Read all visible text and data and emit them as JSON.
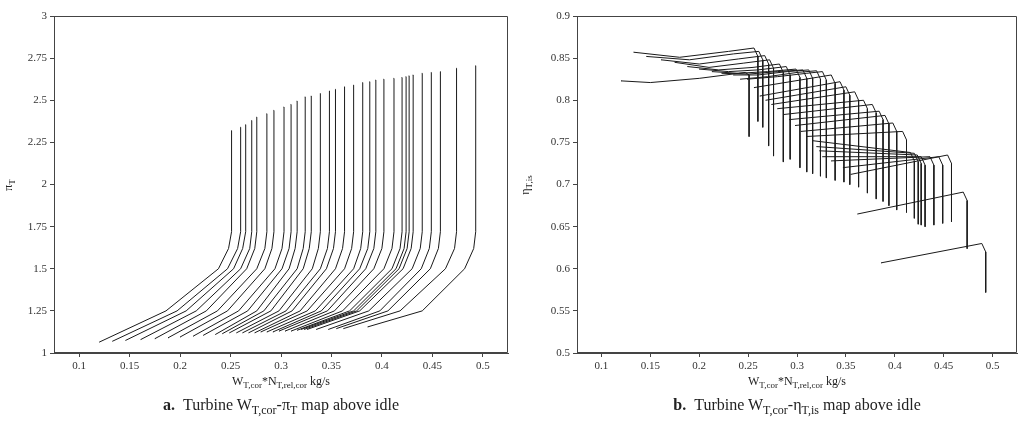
{
  "chart_data": [
    {
      "type": "line",
      "title": "a.  Turbine W$_{T,cor}$-π$_{T}$ map above idle",
      "xlabel": "W$_{T,cor}$*N$_{T,rel,cor}$ kg/s",
      "ylabel": "π$_{T}$",
      "color": "#1a1a1a",
      "marker": "none",
      "grid": false,
      "xlim": [
        0.075,
        0.525
      ],
      "xticks": [
        0.1,
        0.15,
        0.2,
        0.25,
        0.3,
        0.35,
        0.4,
        0.45,
        0.5
      ],
      "ylim": [
        1,
        3
      ],
      "yticks": [
        1,
        1.25,
        1.5,
        1.75,
        2,
        2.25,
        2.5,
        2.75,
        3
      ],
      "series": [
        {
          "x": [
            0.12,
            0.186,
            0.238,
            0.248,
            0.251,
            0.251
          ],
          "values": [
            1.065,
            1.25,
            1.5,
            1.62,
            1.72,
            2.32
          ]
        },
        {
          "x": [
            0.133,
            0.197,
            0.247,
            0.257,
            0.26,
            0.26
          ],
          "values": [
            1.07,
            1.25,
            1.5,
            1.62,
            1.72,
            2.34
          ]
        },
        {
          "x": [
            0.146,
            0.206,
            0.253,
            0.262,
            0.265,
            0.265
          ],
          "values": [
            1.075,
            1.25,
            1.5,
            1.62,
            1.72,
            2.355
          ]
        },
        {
          "x": [
            0.161,
            0.216,
            0.26,
            0.269,
            0.271,
            0.271
          ],
          "values": [
            1.08,
            1.25,
            1.5,
            1.62,
            1.72,
            2.38
          ]
        },
        {
          "x": [
            0.175,
            0.226,
            0.266,
            0.274,
            0.276,
            0.276
          ],
          "values": [
            1.085,
            1.25,
            1.5,
            1.62,
            1.72,
            2.4
          ]
        },
        {
          "x": [
            0.188,
            0.237,
            0.276,
            0.284,
            0.286,
            0.286
          ],
          "values": [
            1.09,
            1.25,
            1.5,
            1.62,
            1.72,
            2.42
          ]
        },
        {
          "x": [
            0.2,
            0.247,
            0.284,
            0.291,
            0.293,
            0.293
          ],
          "values": [
            1.095,
            1.25,
            1.5,
            1.62,
            1.72,
            2.44
          ]
        },
        {
          "x": [
            0.213,
            0.258,
            0.294,
            0.301,
            0.303,
            0.303
          ],
          "values": [
            1.1,
            1.25,
            1.5,
            1.62,
            1.72,
            2.46
          ]
        },
        {
          "x": [
            0.223,
            0.267,
            0.301,
            0.308,
            0.31,
            0.31
          ],
          "values": [
            1.105,
            1.25,
            1.5,
            1.62,
            1.72,
            2.475
          ]
        },
        {
          "x": [
            0.235,
            0.276,
            0.308,
            0.314,
            0.316,
            0.316
          ],
          "values": [
            1.11,
            1.25,
            1.5,
            1.62,
            1.72,
            2.495
          ]
        },
        {
          "x": [
            0.242,
            0.283,
            0.316,
            0.322,
            0.324,
            0.324
          ],
          "values": [
            1.115,
            1.25,
            1.5,
            1.62,
            1.72,
            2.52
          ]
        },
        {
          "x": [
            0.249,
            0.29,
            0.322,
            0.328,
            0.33,
            0.33
          ],
          "values": [
            1.12,
            1.25,
            1.5,
            1.62,
            1.72,
            2.525
          ]
        },
        {
          "x": [
            0.256,
            0.298,
            0.331,
            0.337,
            0.339,
            0.339
          ],
          "values": [
            1.12,
            1.25,
            1.5,
            1.62,
            1.72,
            2.54
          ]
        },
        {
          "x": [
            0.262,
            0.305,
            0.339,
            0.346,
            0.348,
            0.348
          ],
          "values": [
            1.12,
            1.25,
            1.5,
            1.62,
            1.72,
            2.555
          ]
        },
        {
          "x": [
            0.268,
            0.311,
            0.345,
            0.352,
            0.354,
            0.354
          ],
          "values": [
            1.12,
            1.25,
            1.5,
            1.62,
            1.72,
            2.565
          ]
        },
        {
          "x": [
            0.274,
            0.319,
            0.354,
            0.361,
            0.363,
            0.363
          ],
          "values": [
            1.12,
            1.25,
            1.5,
            1.62,
            1.72,
            2.58
          ]
        },
        {
          "x": [
            0.28,
            0.326,
            0.363,
            0.37,
            0.372,
            0.372
          ],
          "values": [
            1.125,
            1.25,
            1.5,
            1.62,
            1.72,
            2.59
          ]
        },
        {
          "x": [
            0.286,
            0.334,
            0.372,
            0.379,
            0.381,
            0.381
          ],
          "values": [
            1.125,
            1.25,
            1.5,
            1.62,
            1.72,
            2.605
          ]
        },
        {
          "x": [
            0.292,
            0.34,
            0.378,
            0.386,
            0.388,
            0.388
          ],
          "values": [
            1.125,
            1.25,
            1.5,
            1.62,
            1.72,
            2.61
          ]
        },
        {
          "x": [
            0.298,
            0.346,
            0.384,
            0.392,
            0.394,
            0.394
          ],
          "values": [
            1.13,
            1.25,
            1.5,
            1.62,
            1.72,
            2.62
          ]
        },
        {
          "x": [
            0.304,
            0.353,
            0.392,
            0.4,
            0.402,
            0.402
          ],
          "values": [
            1.13,
            1.25,
            1.5,
            1.62,
            1.72,
            2.625
          ]
        },
        {
          "x": [
            0.31,
            0.361,
            0.402,
            0.41,
            0.412,
            0.412
          ],
          "values": [
            1.13,
            1.25,
            1.5,
            1.62,
            1.72,
            2.63
          ]
        },
        {
          "x": [
            0.316,
            0.368,
            0.41,
            0.418,
            0.42,
            0.42
          ],
          "values": [
            1.135,
            1.25,
            1.5,
            1.62,
            1.72,
            2.635
          ]
        },
        {
          "x": [
            0.32,
            0.372,
            0.414,
            0.422,
            0.424,
            0.424
          ],
          "values": [
            1.14,
            1.25,
            1.5,
            1.62,
            1.72,
            2.64
          ]
        },
        {
          "x": [
            0.323,
            0.375,
            0.417,
            0.425,
            0.427,
            0.427
          ],
          "values": [
            1.14,
            1.25,
            1.5,
            1.62,
            1.72,
            2.645
          ]
        },
        {
          "x": [
            0.326,
            0.378,
            0.421,
            0.429,
            0.431,
            0.431
          ],
          "values": [
            1.14,
            1.25,
            1.5,
            1.62,
            1.72,
            2.65
          ]
        },
        {
          "x": [
            0.335,
            0.387,
            0.43,
            0.438,
            0.44,
            0.44
          ],
          "values": [
            1.14,
            1.25,
            1.5,
            1.62,
            1.72,
            2.66
          ]
        },
        {
          "x": [
            0.347,
            0.398,
            0.439,
            0.447,
            0.449,
            0.449
          ],
          "values": [
            1.14,
            1.25,
            1.5,
            1.62,
            1.72,
            2.665
          ]
        },
        {
          "x": [
            0.355,
            0.406,
            0.448,
            0.456,
            0.458,
            0.458
          ],
          "values": [
            1.145,
            1.25,
            1.5,
            1.62,
            1.72,
            2.67
          ]
        },
        {
          "x": [
            0.362,
            0.418,
            0.463,
            0.472,
            0.474,
            0.474
          ],
          "values": [
            1.145,
            1.25,
            1.5,
            1.62,
            1.72,
            2.69
          ]
        },
        {
          "x": [
            0.386,
            0.44,
            0.482,
            0.491,
            0.493,
            0.493
          ],
          "values": [
            1.155,
            1.25,
            1.5,
            1.62,
            1.72,
            2.705
          ]
        }
      ]
    },
    {
      "type": "line",
      "title": "b.  Turbine W$_{T,cor}$-η$_{T,is}$ map above idle",
      "xlabel": "W$_{T,cor}$*N$_{T,rel,cor}$ kg/s",
      "ylabel": "η$_{T,is}$",
      "color": "#1a1a1a",
      "marker": "none",
      "grid": false,
      "xlim": [
        0.075,
        0.525
      ],
      "xticks": [
        0.1,
        0.15,
        0.2,
        0.25,
        0.3,
        0.35,
        0.4,
        0.45,
        0.5
      ],
      "ylim": [
        0.5,
        0.9
      ],
      "yticks": [
        0.5,
        0.55,
        0.6,
        0.65,
        0.7,
        0.75,
        0.8,
        0.85,
        0.9
      ],
      "series": [
        {
          "x": [
            0.12,
            0.15,
            0.2,
            0.247,
            0.251,
            0.251
          ],
          "values": [
            0.823,
            0.821,
            0.826,
            0.833,
            0.83,
            0.757
          ]
        },
        {
          "x": [
            0.133,
            0.18,
            0.23,
            0.256,
            0.26,
            0.26
          ],
          "values": [
            0.857,
            0.851,
            0.858,
            0.862,
            0.852,
            0.775
          ]
        },
        {
          "x": [
            0.146,
            0.19,
            0.235,
            0.261,
            0.265,
            0.265
          ],
          "values": [
            0.852,
            0.848,
            0.855,
            0.858,
            0.848,
            0.768
          ]
        },
        {
          "x": [
            0.161,
            0.2,
            0.24,
            0.267,
            0.271,
            0.271
          ],
          "values": [
            0.848,
            0.843,
            0.849,
            0.853,
            0.843,
            0.746
          ]
        },
        {
          "x": [
            0.175,
            0.21,
            0.245,
            0.272,
            0.276,
            0.276
          ],
          "values": [
            0.845,
            0.839,
            0.844,
            0.848,
            0.838,
            0.734
          ]
        },
        {
          "x": [
            0.188,
            0.22,
            0.255,
            0.282,
            0.286,
            0.286
          ],
          "values": [
            0.84,
            0.836,
            0.839,
            0.843,
            0.833,
            0.727
          ]
        },
        {
          "x": [
            0.2,
            0.23,
            0.26,
            0.289,
            0.293,
            0.293
          ],
          "values": [
            0.837,
            0.834,
            0.836,
            0.84,
            0.83,
            0.73
          ]
        },
        {
          "x": [
            0.213,
            0.24,
            0.27,
            0.299,
            0.303,
            0.303
          ],
          "values": [
            0.834,
            0.832,
            0.834,
            0.837,
            0.827,
            0.72
          ]
        },
        {
          "x": [
            0.223,
            0.25,
            0.28,
            0.306,
            0.31,
            0.31
          ],
          "values": [
            0.832,
            0.831,
            0.834,
            0.836,
            0.826,
            0.715
          ]
        },
        {
          "x": [
            0.235,
            0.26,
            0.29,
            0.312,
            0.316,
            0.316
          ],
          "values": [
            0.83,
            0.83,
            0.834,
            0.836,
            0.826,
            0.713
          ]
        },
        {
          "x": [
            0.242,
            0.27,
            0.3,
            0.32,
            0.324,
            0.324
          ],
          "values": [
            0.825,
            0.828,
            0.833,
            0.835,
            0.825,
            0.71
          ]
        },
        {
          "x": [
            0.249,
            0.28,
            0.31,
            0.326,
            0.33,
            0.33
          ],
          "values": [
            0.825,
            0.828,
            0.832,
            0.834,
            0.824,
            0.708
          ]
        },
        {
          "x": [
            0.256,
            0.335,
            0.339,
            0.339
          ],
          "values": [
            0.815,
            0.83,
            0.82,
            0.705
          ]
        },
        {
          "x": [
            0.262,
            0.344,
            0.348,
            0.348
          ],
          "values": [
            0.805,
            0.822,
            0.812,
            0.703
          ]
        },
        {
          "x": [
            0.268,
            0.35,
            0.354,
            0.354
          ],
          "values": [
            0.8,
            0.816,
            0.806,
            0.7
          ]
        },
        {
          "x": [
            0.274,
            0.359,
            0.363,
            0.363
          ],
          "values": [
            0.795,
            0.81,
            0.8,
            0.697
          ]
        },
        {
          "x": [
            0.28,
            0.368,
            0.372,
            0.372
          ],
          "values": [
            0.79,
            0.8,
            0.79,
            0.69
          ]
        },
        {
          "x": [
            0.286,
            0.377,
            0.381,
            0.381
          ],
          "values": [
            0.783,
            0.795,
            0.785,
            0.683
          ]
        },
        {
          "x": [
            0.292,
            0.384,
            0.388,
            0.388
          ],
          "values": [
            0.777,
            0.787,
            0.777,
            0.68
          ]
        },
        {
          "x": [
            0.298,
            0.39,
            0.394,
            0.394
          ],
          "values": [
            0.77,
            0.782,
            0.772,
            0.675
          ]
        },
        {
          "x": [
            0.304,
            0.398,
            0.402,
            0.402
          ],
          "values": [
            0.763,
            0.773,
            0.763,
            0.67
          ]
        },
        {
          "x": [
            0.31,
            0.408,
            0.412,
            0.412
          ],
          "values": [
            0.757,
            0.763,
            0.753,
            0.667
          ]
        },
        {
          "x": [
            0.316,
            0.416,
            0.42,
            0.42
          ],
          "values": [
            0.752,
            0.738,
            0.728,
            0.66
          ]
        },
        {
          "x": [
            0.32,
            0.42,
            0.424,
            0.424
          ],
          "values": [
            0.745,
            0.737,
            0.727,
            0.653
          ]
        },
        {
          "x": [
            0.323,
            0.423,
            0.427,
            0.427
          ],
          "values": [
            0.74,
            0.735,
            0.725,
            0.652
          ]
        },
        {
          "x": [
            0.326,
            0.427,
            0.431,
            0.431
          ],
          "values": [
            0.733,
            0.733,
            0.723,
            0.65
          ]
        },
        {
          "x": [
            0.335,
            0.436,
            0.44,
            0.44
          ],
          "values": [
            0.728,
            0.733,
            0.723,
            0.652
          ]
        },
        {
          "x": [
            0.347,
            0.445,
            0.449,
            0.449
          ],
          "values": [
            0.72,
            0.733,
            0.723,
            0.654
          ]
        },
        {
          "x": [
            0.355,
            0.454,
            0.458,
            0.458
          ],
          "values": [
            0.712,
            0.735,
            0.725,
            0.656
          ]
        },
        {
          "x": [
            0.362,
            0.47,
            0.474,
            0.474
          ],
          "values": [
            0.665,
            0.691,
            0.681,
            0.624
          ]
        },
        {
          "x": [
            0.386,
            0.489,
            0.493,
            0.493
          ],
          "values": [
            0.607,
            0.63,
            0.62,
            0.572
          ]
        }
      ]
    }
  ]
}
